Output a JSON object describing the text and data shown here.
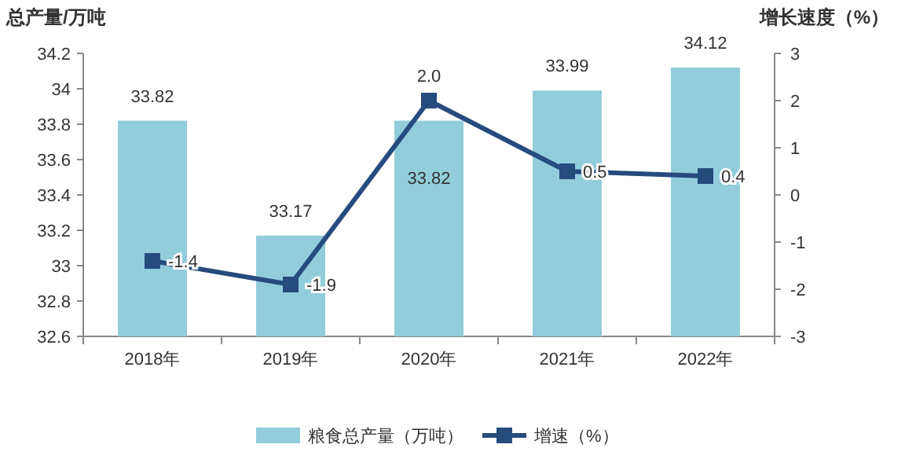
{
  "chart_data": {
    "type": "bar",
    "ylabel": "总产量/万吨",
    "y2label": "增长速度（%）",
    "categories": [
      "2018年",
      "2019年",
      "2020年",
      "2021年",
      "2022年"
    ],
    "series": [
      {
        "name": "粮食总产量（万吨）",
        "color": "#92cddc",
        "values": [
          33.82,
          33.17,
          33.82,
          33.99,
          34.12
        ],
        "value_labels": [
          "33.82",
          "33.17",
          "33.82",
          "33.99",
          "34.12"
        ]
      },
      {
        "name": "增速（%）",
        "type": "line",
        "axis": "y2",
        "color": "#264b7d",
        "marker": "square",
        "values": [
          -1.4,
          -1.9,
          2.0,
          0.5,
          0.4
        ],
        "value_labels": [
          "-1.4",
          "-1.9",
          "2.0",
          "0.5",
          "0.4"
        ]
      }
    ],
    "ylim": [
      32.6,
      34.2
    ],
    "yticks": [
      32.6,
      32.8,
      33,
      33.2,
      33.4,
      33.6,
      33.8,
      34,
      34.2
    ],
    "y2lim": [
      -3,
      3
    ],
    "y2ticks": [
      -3,
      -2,
      -1,
      0,
      1,
      2,
      3
    ],
    "grid": false,
    "legend": "bottom"
  }
}
